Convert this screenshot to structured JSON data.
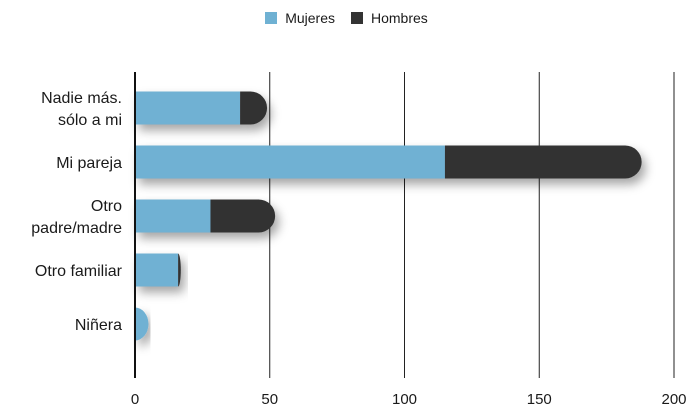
{
  "chart_data": {
    "type": "bar",
    "orientation": "horizontal",
    "stacked": true,
    "categories": [
      "Nadie más. sólo a mi",
      "Mi pareja",
      "Otro padre/madre",
      "Otro familiar",
      "Niñera"
    ],
    "category_lines": [
      [
        "Nadie    más.",
        "sólo a mi"
      ],
      [
        "Mi pareja"
      ],
      [
        "Otro",
        "padre/madre"
      ],
      [
        "Otro familiar"
      ],
      [
        "Niñera"
      ]
    ],
    "series": [
      {
        "name": "Mujeres",
        "values": [
          39,
          115,
          28,
          16,
          5
        ],
        "color": "#6fb1d3"
      },
      {
        "name": "Hombres",
        "values": [
          10,
          73,
          24,
          1,
          0
        ],
        "color": "#333333"
      }
    ],
    "xlim": [
      0,
      200
    ],
    "xticks": [
      0,
      50,
      100,
      150,
      200
    ],
    "grid": true,
    "legend": "top-center",
    "title": "",
    "xlabel": "",
    "ylabel": ""
  }
}
